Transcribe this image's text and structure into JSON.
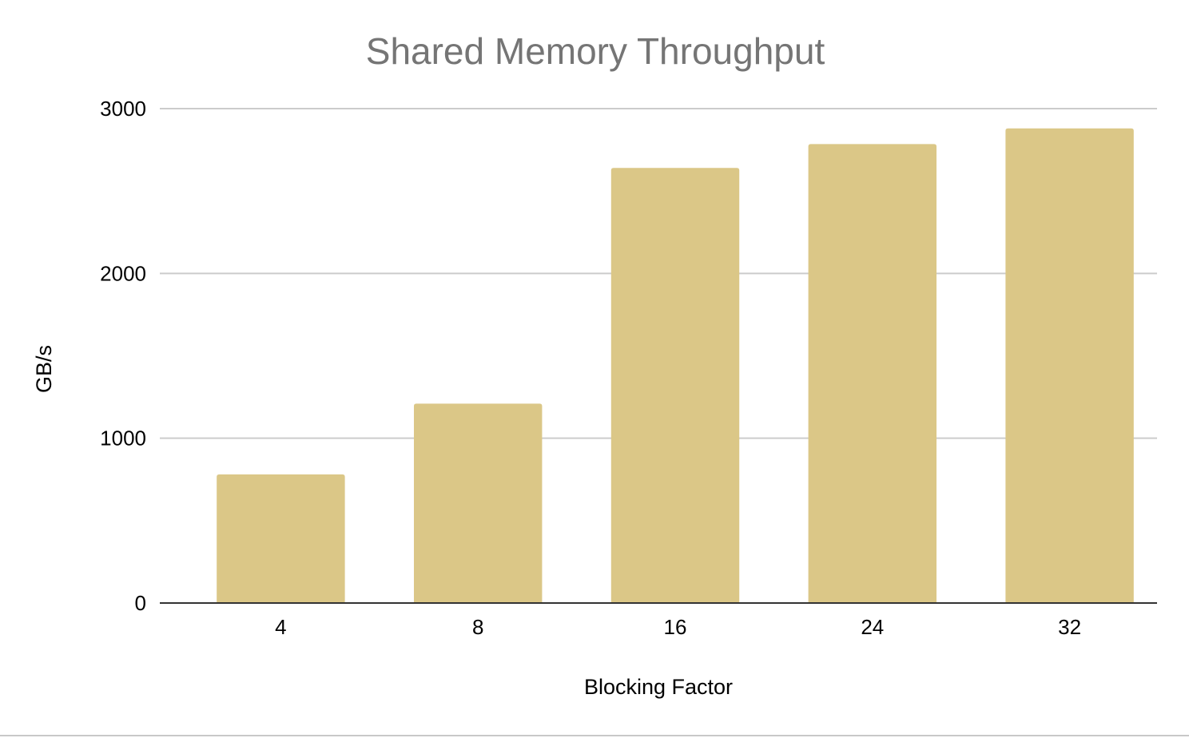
{
  "chart_data": {
    "type": "bar",
    "title": "Shared Memory Throughput",
    "xlabel": "Blocking Factor",
    "ylabel": "GB/s",
    "categories": [
      "4",
      "8",
      "16",
      "24",
      "32"
    ],
    "values": [
      780,
      1210,
      2640,
      2785,
      2880
    ],
    "ylim": [
      0,
      3000
    ],
    "yticks": [
      0,
      1000,
      2000,
      3000
    ],
    "grid": true,
    "legend": "none",
    "colors": {
      "bar": "#dbc787",
      "title": "#757575",
      "grid": "#cccccc",
      "axis": "#333333"
    }
  }
}
